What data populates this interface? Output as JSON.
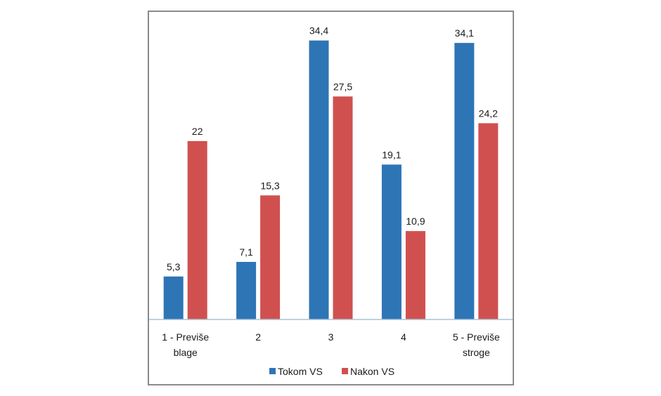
{
  "chart_data": {
    "type": "bar",
    "categories": [
      [
        "1 - Previše",
        "blage"
      ],
      [
        "2"
      ],
      [
        "3"
      ],
      [
        "4"
      ],
      [
        "5 - Previše",
        "stroge"
      ]
    ],
    "series": [
      {
        "name": "Tokom VS",
        "color": "#2e75b6",
        "values": [
          5.3,
          7.1,
          34.4,
          19.1,
          34.1
        ],
        "labels": [
          "5,3",
          "7,1",
          "34,4",
          "19,1",
          "34,1"
        ]
      },
      {
        "name": "Nakon VS",
        "color": "#d0504f",
        "values": [
          22,
          15.3,
          27.5,
          10.9,
          24.2
        ],
        "labels": [
          "22",
          "15,3",
          "27,5",
          "10,9",
          "24,2"
        ]
      }
    ],
    "ylim": [
      0,
      35
    ],
    "grid": false,
    "legend_position": "bottom",
    "axis_color": "#a9c4d6"
  }
}
